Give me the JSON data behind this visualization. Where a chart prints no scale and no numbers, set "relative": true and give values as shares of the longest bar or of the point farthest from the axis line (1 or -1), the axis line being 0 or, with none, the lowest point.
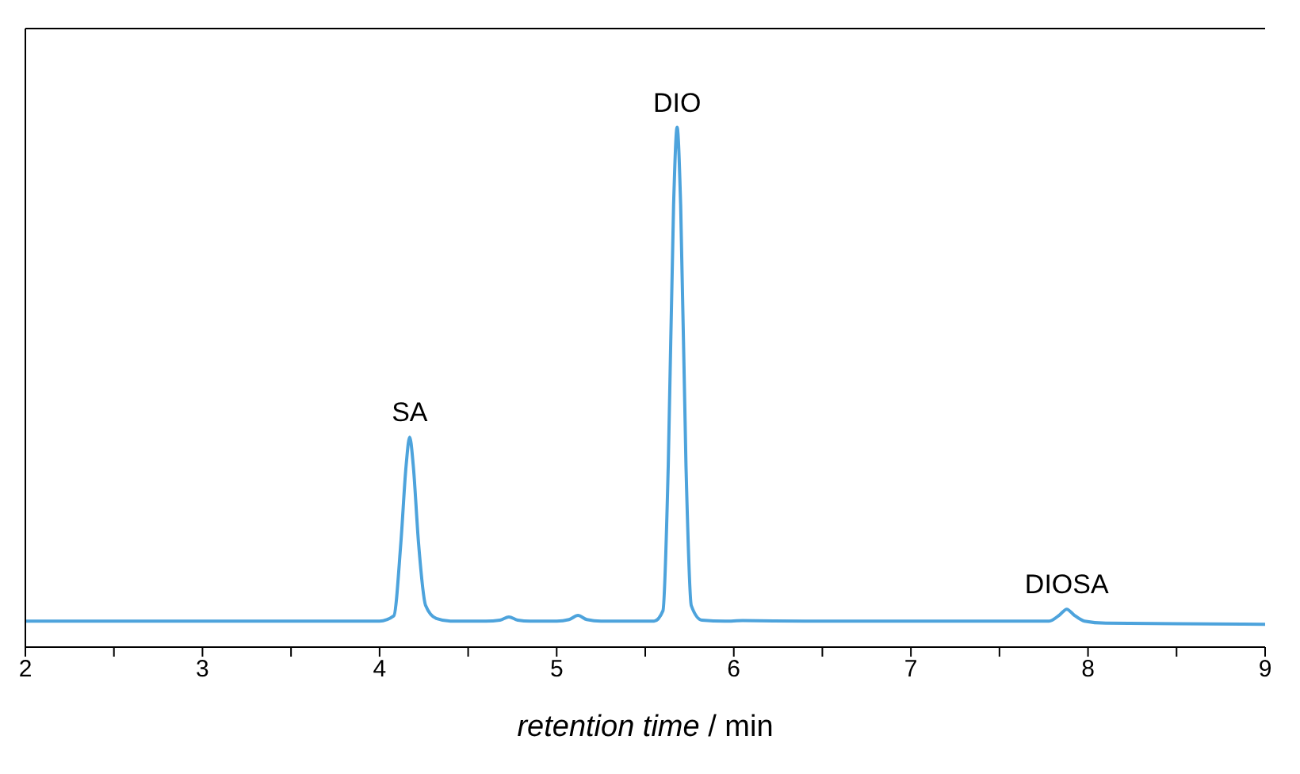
{
  "chart_data": {
    "type": "line",
    "relative": true,
    "xlabel": "retention time / min",
    "xlim": [
      2,
      9
    ],
    "xticks": [
      2,
      {
        "value": 2.5,
        "label": null
      },
      3,
      {
        "value": 3.5,
        "label": null
      },
      4,
      {
        "value": 4.5,
        "label": null
      },
      5,
      {
        "value": 5.5,
        "label": null
      },
      6,
      {
        "value": 6.5,
        "label": null
      },
      7,
      {
        "value": 7.5,
        "label": null
      },
      8,
      {
        "value": 8.5,
        "label": null
      },
      9
    ],
    "series": [
      {
        "color": "#4da3dc",
        "x": [
          2,
          3,
          3.7,
          4.0,
          4.08,
          4.12,
          4.15,
          4.17,
          4.19,
          4.22,
          4.26,
          4.32,
          4.4,
          4.6,
          4.68,
          4.73,
          4.78,
          4.85,
          5.0,
          5.07,
          5.12,
          5.17,
          5.25,
          5.45,
          5.55,
          5.6,
          5.63,
          5.66,
          5.68,
          5.7,
          5.73,
          5.76,
          5.82,
          5.95,
          6.05,
          6.4,
          7.0,
          7.5,
          7.78,
          7.84,
          7.88,
          7.92,
          7.98,
          8.1,
          8.5,
          9
        ],
        "values": [
          0.05,
          0.05,
          0.05,
          0.05,
          0.06,
          0.2,
          0.35,
          0.404,
          0.35,
          0.2,
          0.08,
          0.055,
          0.05,
          0.05,
          0.052,
          0.058,
          0.052,
          0.05,
          0.05,
          0.053,
          0.061,
          0.053,
          0.05,
          0.05,
          0.05,
          0.07,
          0.35,
          0.85,
          1,
          0.85,
          0.35,
          0.08,
          0.052,
          0.05,
          0.051,
          0.05,
          0.05,
          0.05,
          0.05,
          0.062,
          0.073,
          0.062,
          0.05,
          0.046,
          0.045,
          0.044
        ]
      }
    ],
    "annotations": [
      {
        "text": "SA",
        "x": 4.17,
        "y": 0.404
      },
      {
        "text": "DIO",
        "x": 5.68,
        "y": 1
      },
      {
        "text": "DIOSA",
        "x": 7.88,
        "y": 0.073
      }
    ]
  }
}
